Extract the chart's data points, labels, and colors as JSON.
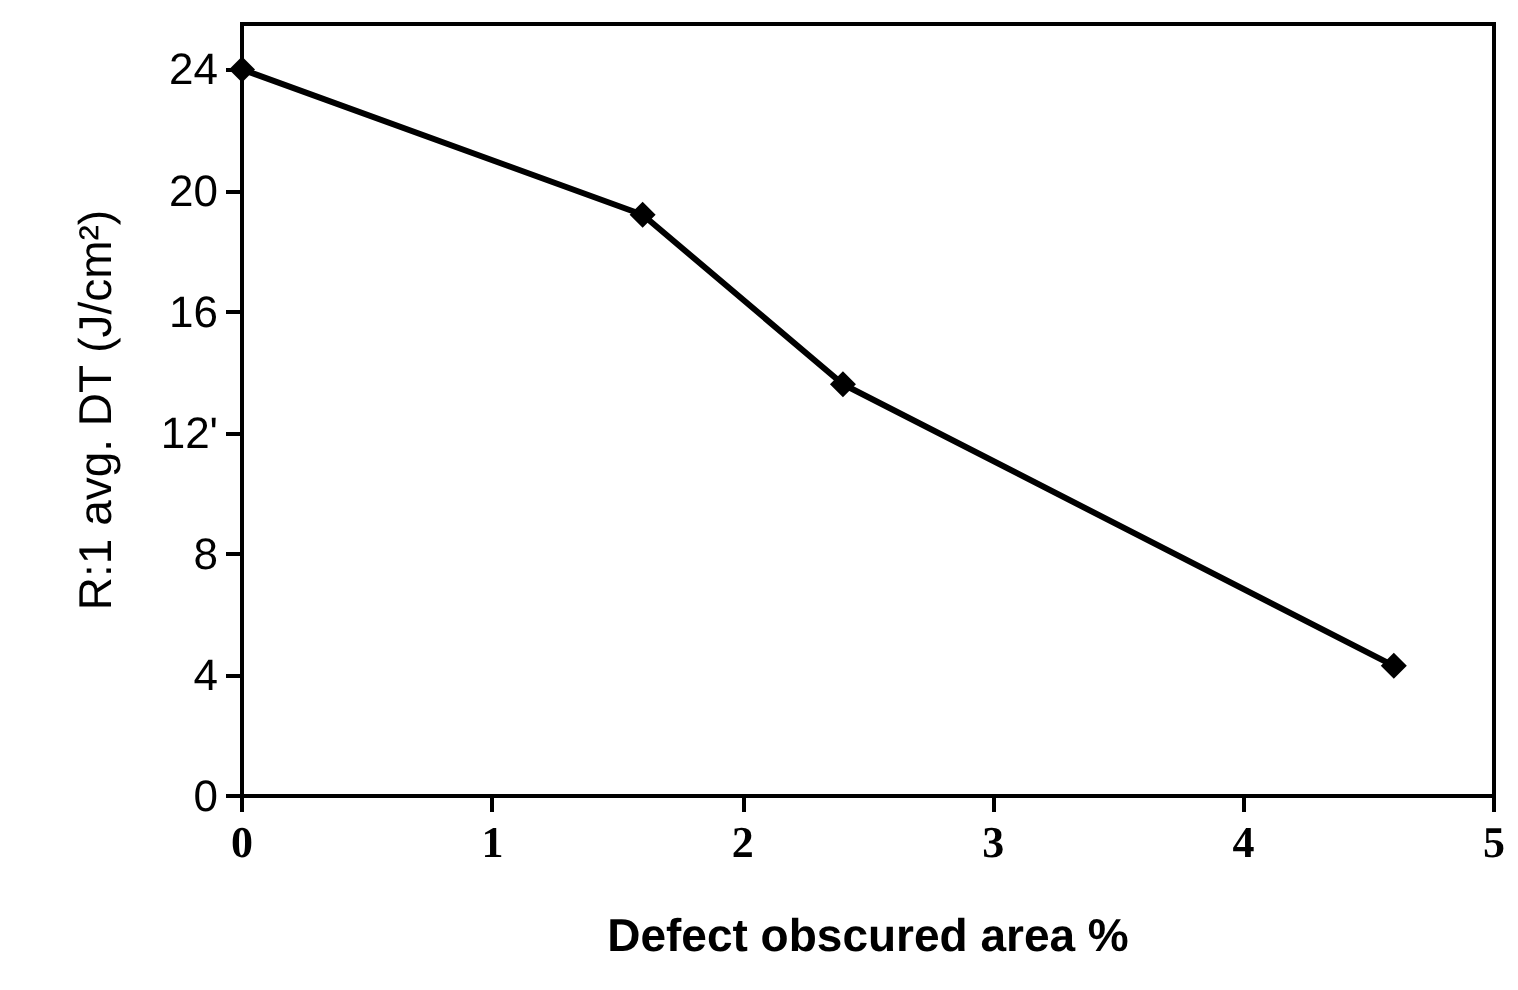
{
  "chart_data": {
    "type": "line",
    "xlabel": "Defect obscured area %",
    "ylabel": "R:1 avg. DT (J/cm²)",
    "x": [
      0,
      1.6,
      2.4,
      4.6
    ],
    "series": [
      {
        "color": "#000000",
        "values": [
          24,
          19.2,
          13.6,
          4.3
        ]
      }
    ],
    "xlim": [
      0,
      5
    ],
    "xticks": [
      0,
      1,
      2,
      3,
      4,
      5
    ],
    "ylim": [
      0,
      25.5
    ],
    "yticks": [
      0,
      4,
      8,
      {
        "value": 12,
        "label": "12'"
      },
      16,
      20,
      24
    ],
    "grid": false,
    "marker": "diamond",
    "line_style": "solid"
  }
}
